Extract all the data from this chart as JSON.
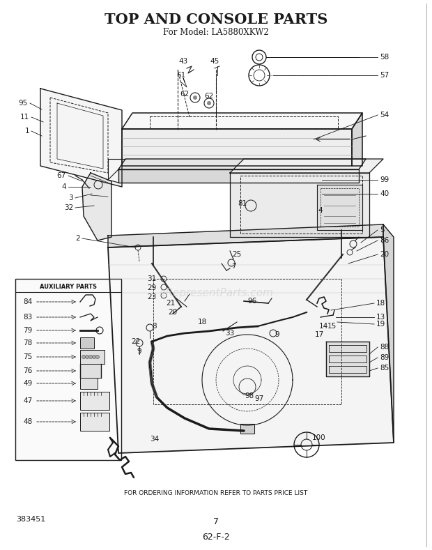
{
  "title": "TOP AND CONSOLE PARTS",
  "subtitle": "For Model: LA5880XKW2",
  "model_number": "383451",
  "page_number": "7",
  "code": "62-F-2",
  "footer": "FOR ORDERING INFORMATION REFER TO PARTS PRICE LIST",
  "bg_color": "#ffffff",
  "line_color": "#1a1a1a",
  "gray": "#888888",
  "light_gray": "#cccccc",
  "watermark_color": "#cccccc",
  "watermark": "eRepresentParts.com",
  "title_fontsize": 15,
  "subtitle_fontsize": 8.5
}
